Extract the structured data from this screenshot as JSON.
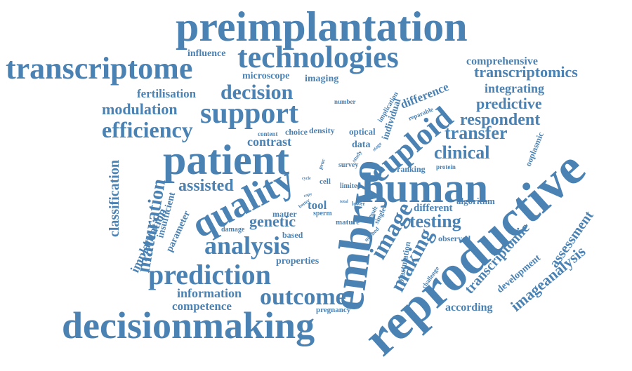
{
  "palette": {
    "word": "#4a82b4",
    "background": "#ffffff"
  },
  "words": {
    "preimplantation": "preimplantation",
    "technologies": "technologies",
    "transcriptome": "transcriptome",
    "influence": "influence",
    "microscope": "microscope",
    "imaging": "imaging",
    "comprehensive": "comprehensive",
    "transcriptomics": "transcriptomics",
    "fertilisation": "fertilisation",
    "decision": "decision",
    "difference": "difference",
    "integrating": "integrating",
    "predictive": "predictive",
    "number": "number",
    "implication": "implication",
    "reparable": "reparable",
    "modulation": "modulation",
    "support": "support",
    "respondent": "respondent",
    "individual": "individual",
    "euploid": "euploid",
    "embryo": "embryo",
    "efficiency": "efficiency",
    "content": "content",
    "choice": "choice",
    "density": "density",
    "optical": "optical",
    "transfer": "transfer",
    "contrast": "contrast",
    "data": "data",
    "clinical": "clinical",
    "oplasmic": "ooplasmic",
    "patient": "patient",
    "study": "study",
    "stage": "stage",
    "survey": "survey",
    "ranking": "ranking",
    "protein": "protein",
    "classification": "classification",
    "human": "human",
    "reproductive": "reproductive",
    "cycle": "cycle",
    "proc": "proc",
    "cell": "cell",
    "limited": "limited",
    "assisted": "assisted",
    "quality": "quality",
    "maturation": "maturation",
    "insufficient": "insufficient",
    "copy": "copy",
    "better": "better",
    "total": "total",
    "lower": "lower",
    "algorithm": "algorithm",
    "tool": "tool",
    "different": "different",
    "matter": "matter",
    "sperm": "sperm",
    "result": "result",
    "single": "single",
    "genetic": "genetic",
    "image": "image",
    "testing": "testing",
    "implantation": "implantation",
    "parameter": "parameter",
    "damage": "damage",
    "mature": "mature",
    "method": "method",
    "transcriptomic": "transcriptomic",
    "assessment": "assessment",
    "analysis": "analysis",
    "based": "based",
    "observed": "observed",
    "making": "making",
    "blastulation": "blastulation",
    "properties": "properties",
    "prediction": "prediction",
    "challenge": "challenge",
    "development": "development",
    "imageanalysis": "imageanalysis",
    "information": "information",
    "outcome": "outcome",
    "according": "according",
    "competence": "competence",
    "pregnancy": "pregnancy",
    "decisionmaking": "decisionmaking",
    "reproductive_small": "reproductive"
  }
}
